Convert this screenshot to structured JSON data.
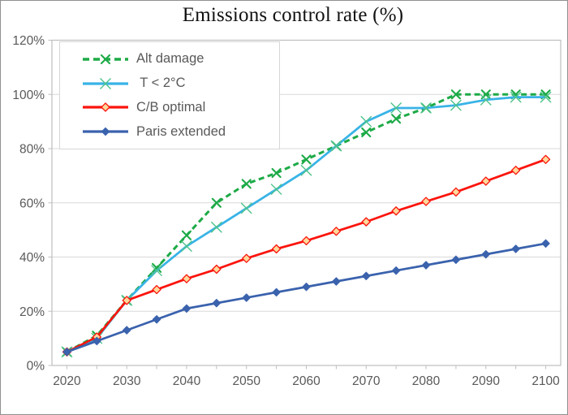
{
  "chart_data": {
    "type": "line",
    "title": "Emissions control rate (%)",
    "xlabel": "",
    "ylabel": "",
    "xlim": [
      2017.5,
      2102.5
    ],
    "ylim": [
      0,
      120
    ],
    "grid": true,
    "legend_position": "top-left-inside",
    "x": [
      2020,
      2025,
      2030,
      2035,
      2040,
      2045,
      2050,
      2055,
      2060,
      2065,
      2070,
      2075,
      2080,
      2085,
      2090,
      2095,
      2100
    ],
    "x_axis": {
      "label_ticks": [
        {
          "v": 2020,
          "label": "2020"
        },
        {
          "v": 2030,
          "label": "2030"
        },
        {
          "v": 2040,
          "label": "2040"
        },
        {
          "v": 2050,
          "label": "2050"
        },
        {
          "v": 2060,
          "label": "2060"
        },
        {
          "v": 2070,
          "label": "2070"
        },
        {
          "v": 2080,
          "label": "2080"
        },
        {
          "v": 2090,
          "label": "2090"
        },
        {
          "v": 2100,
          "label": "2100"
        }
      ],
      "minor_tick_years": [
        2020,
        2025,
        2030,
        2035,
        2040,
        2045,
        2050,
        2055,
        2060,
        2065,
        2070,
        2075,
        2080,
        2085,
        2090,
        2095,
        2100
      ]
    },
    "y_axis": {
      "ticks": [
        {
          "v": 0,
          "label": "0%"
        },
        {
          "v": 20,
          "label": "20%"
        },
        {
          "v": 40,
          "label": "40%"
        },
        {
          "v": 60,
          "label": "60%"
        },
        {
          "v": 80,
          "label": "80%"
        },
        {
          "v": 100,
          "label": "100%"
        },
        {
          "v": 120,
          "label": "120%"
        }
      ]
    },
    "series": [
      {
        "name": "Alt damage",
        "color": "#1daa47",
        "dashed": true,
        "line_width": 3,
        "marker": "x",
        "values": [
          5,
          11,
          24,
          36,
          48,
          60,
          67,
          71,
          76,
          81,
          86,
          91,
          95,
          100,
          100,
          100,
          100
        ]
      },
      {
        "name": " T < 2°C",
        "color": "#38b3e6",
        "marker_color": "#4ec38b",
        "dashed": false,
        "line_width": 2.75,
        "marker": "x-thin",
        "values": [
          5,
          10,
          24,
          35,
          44,
          51,
          58,
          65,
          72,
          81,
          90,
          95,
          95,
          96,
          98,
          99,
          99
        ]
      },
      {
        "name": "C/B optimal",
        "color": "#fb140c",
        "marker_fill": "#ffd89b",
        "dashed": false,
        "line_width": 2.75,
        "marker": "diamond",
        "values": [
          5,
          10.5,
          24,
          28,
          32,
          35.5,
          39.5,
          43,
          46,
          49.5,
          53,
          57,
          60.5,
          64,
          68,
          72,
          76
        ]
      },
      {
        "name": "Paris extended",
        "color": "#3a62ad",
        "dashed": false,
        "line_width": 2.75,
        "marker": "diamond-solid",
        "values": [
          5,
          9,
          13,
          17,
          21,
          23,
          25,
          27,
          29,
          31,
          33,
          35,
          37,
          39,
          41,
          43,
          45
        ]
      }
    ],
    "colors": {
      "grid": "#d9d9d9",
      "axis": "#bfbfbf",
      "tick_label": "#595959",
      "title": "#111111",
      "legend_border": "#d6d6d6"
    }
  }
}
